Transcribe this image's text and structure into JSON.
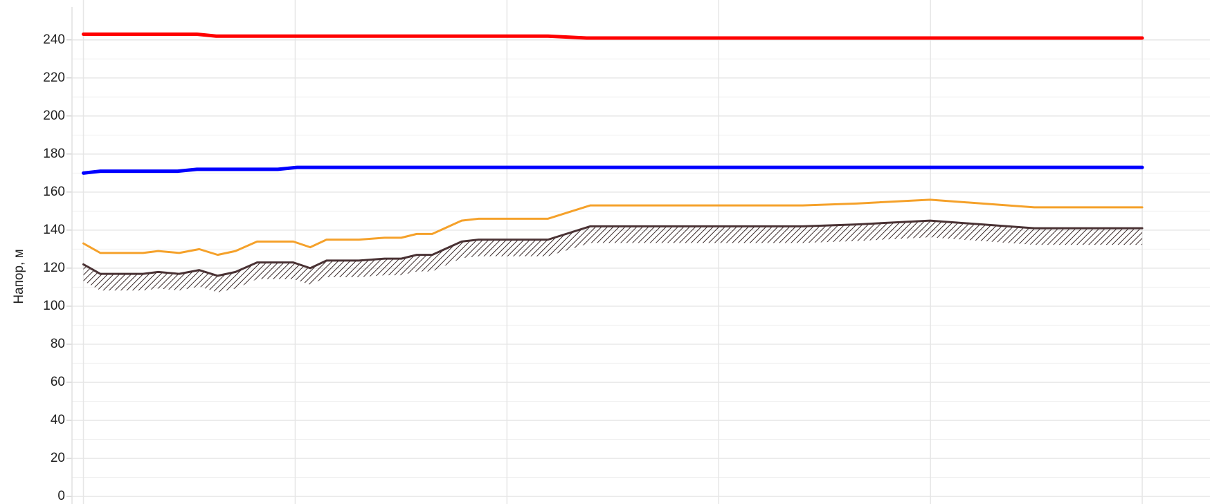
{
  "chart_data": {
    "type": "line",
    "ylabel": "Напор, м",
    "ylim": [
      -4,
      261
    ],
    "yticks": [
      0,
      20,
      40,
      60,
      80,
      100,
      120,
      140,
      160,
      180,
      200,
      220,
      240
    ],
    "xlim": [
      -0.054,
      5.32
    ],
    "xticks": [
      0,
      1,
      2,
      3,
      4,
      5
    ],
    "grid": true,
    "series": [
      {
        "color": "#ff0000",
        "width": 5,
        "x": [
          0,
          0.536,
          0.627,
          2.194,
          2.376,
          5
        ],
        "values": [
          243,
          243,
          242,
          242,
          241,
          241
        ]
      },
      {
        "color": "#0000ff",
        "width": 5,
        "x": [
          0,
          0.08,
          0.445,
          0.536,
          0.918,
          1.009,
          5
        ],
        "values": [
          170,
          171,
          171,
          172,
          172,
          173,
          173
        ]
      },
      {
        "color": "#f5a12a",
        "width": 3,
        "x": [
          0,
          0.08,
          0.281,
          0.353,
          0.452,
          0.547,
          0.634,
          0.718,
          0.82,
          0.991,
          1.071,
          1.148,
          1.301,
          1.422,
          1.501,
          1.574,
          1.647,
          1.786,
          1.866,
          2.194,
          2.394,
          3.397,
          3.652,
          3.998,
          4.49,
          5
        ],
        "values": [
          133,
          128,
          128,
          129,
          128,
          130,
          127,
          129,
          134,
          134,
          131,
          135,
          135,
          136,
          136,
          138,
          138,
          145,
          146,
          146,
          153,
          153,
          154,
          156,
          152,
          152
        ]
      },
      {
        "color": "#4a3234",
        "width": 3,
        "hatch": true,
        "x": [
          0,
          0.08,
          0.281,
          0.353,
          0.452,
          0.547,
          0.634,
          0.718,
          0.82,
          0.991,
          1.071,
          1.148,
          1.301,
          1.422,
          1.501,
          1.574,
          1.647,
          1.786,
          1.866,
          2.194,
          2.394,
          3.397,
          3.652,
          3.998,
          4.49,
          5
        ],
        "values": [
          122,
          117,
          117,
          118,
          117,
          119,
          116,
          118,
          123,
          123,
          120,
          124,
          124,
          125,
          125,
          127,
          127,
          134,
          135,
          135,
          142,
          142,
          143,
          145,
          141,
          141
        ]
      }
    ]
  }
}
